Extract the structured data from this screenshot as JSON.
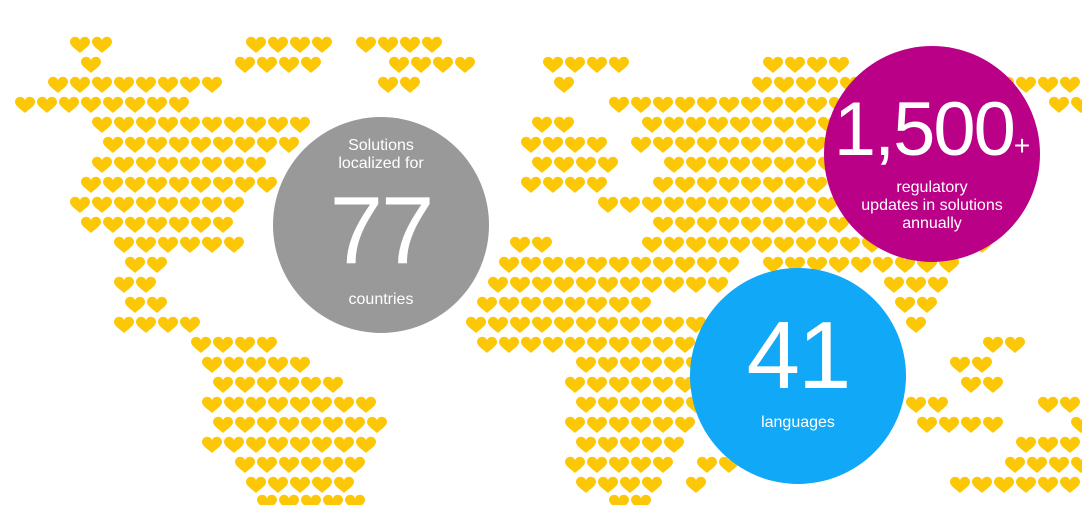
{
  "colors": {
    "heart": "#fcc707",
    "gray": "#999999",
    "magenta": "#bb0088",
    "blue": "#11a8f8",
    "text": "#ffffff"
  },
  "icon": "heart-icon",
  "stats": {
    "countries": {
      "top": "Solutions localized for",
      "number": "77",
      "bottom": "countries"
    },
    "updates": {
      "number": "1,500",
      "suffix": "+",
      "line1": "regulatory",
      "line2": "updates in solutions",
      "line3": "annually"
    },
    "languages": {
      "number": "41",
      "bottom": "languages"
    }
  }
}
